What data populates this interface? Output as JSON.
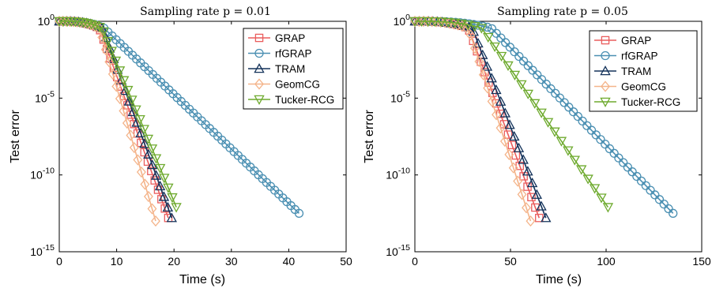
{
  "chart_data": [
    {
      "type": "line",
      "title": "Sampling rate p = 0.01",
      "xlabel": "Time (s)",
      "ylabel": "Test error",
      "xlim": [
        0,
        50
      ],
      "ylim": [
        1e-15,
        1
      ],
      "yscale": "log",
      "xticks": [
        "0",
        "10",
        "20",
        "30",
        "40",
        "50"
      ],
      "yticks": [
        {
          "base": "10",
          "exp": "0"
        },
        {
          "base": "10",
          "exp": "-5"
        },
        {
          "base": "10",
          "exp": "-10"
        },
        {
          "base": "10",
          "exp": "-15"
        }
      ],
      "legend_position": "top-right",
      "grid": false,
      "series": [
        {
          "name": "GRAP",
          "color": "#ea5d5d",
          "marker": "square",
          "x0": 0,
          "x1": 19,
          "plateau": 7.0,
          "points": 33,
          "final_exp": -12.8
        },
        {
          "name": "rfGRAP",
          "color": "#4a8fb2",
          "marker": "circle",
          "x0": 0,
          "x1": 41.8,
          "plateau": 7.8,
          "points": 60,
          "final_exp": -12.5
        },
        {
          "name": "TRAM",
          "color": "#13325a",
          "marker": "triangle",
          "x0": 0,
          "x1": 19.6,
          "plateau": 7.5,
          "points": 30,
          "final_exp": -12.8
        },
        {
          "name": "GeomCG",
          "color": "#f4b48a",
          "marker": "diamond",
          "x0": 0,
          "x1": 16.8,
          "plateau": 7.0,
          "points": 28,
          "final_exp": -13.0
        },
        {
          "name": "Tucker-RCG",
          "color": "#6eaa2e",
          "marker": "triangle-down",
          "x0": 0,
          "x1": 20.4,
          "plateau": 7.5,
          "points": 30,
          "final_exp": -12.1
        }
      ]
    },
    {
      "type": "line",
      "title": "Sampling rate p = 0.05",
      "xlabel": "Time (s)",
      "ylabel": "Test error",
      "xlim": [
        0,
        150
      ],
      "ylim": [
        1e-15,
        1
      ],
      "yscale": "log",
      "xticks": [
        "0",
        "50",
        "100",
        "150"
      ],
      "yticks": [
        {
          "base": "10",
          "exp": "0"
        },
        {
          "base": "10",
          "exp": "-5"
        },
        {
          "base": "10",
          "exp": "-10"
        },
        {
          "base": "10",
          "exp": "-15"
        }
      ],
      "legend_position": "top-right",
      "grid": false,
      "series": [
        {
          "name": "GRAP",
          "color": "#ea5d5d",
          "marker": "square",
          "x0": 0,
          "x1": 65,
          "plateau": 28,
          "points": 33,
          "final_exp": -12.8
        },
        {
          "name": "rfGRAP",
          "color": "#4a8fb2",
          "marker": "circle",
          "x0": 0,
          "x1": 135,
          "plateau": 40,
          "points": 58,
          "final_exp": -12.5
        },
        {
          "name": "TRAM",
          "color": "#13325a",
          "marker": "triangle",
          "x0": 0,
          "x1": 68.5,
          "plateau": 30,
          "points": 30,
          "final_exp": -12.8
        },
        {
          "name": "GeomCG",
          "color": "#f4b48a",
          "marker": "diamond",
          "x0": 0,
          "x1": 60.5,
          "plateau": 28,
          "points": 28,
          "final_exp": -13.0
        },
        {
          "name": "Tucker-RCG",
          "color": "#6eaa2e",
          "marker": "triangle-down",
          "x0": 0,
          "x1": 101,
          "plateau": 35,
          "points": 30,
          "final_exp": -12.1
        }
      ]
    }
  ]
}
